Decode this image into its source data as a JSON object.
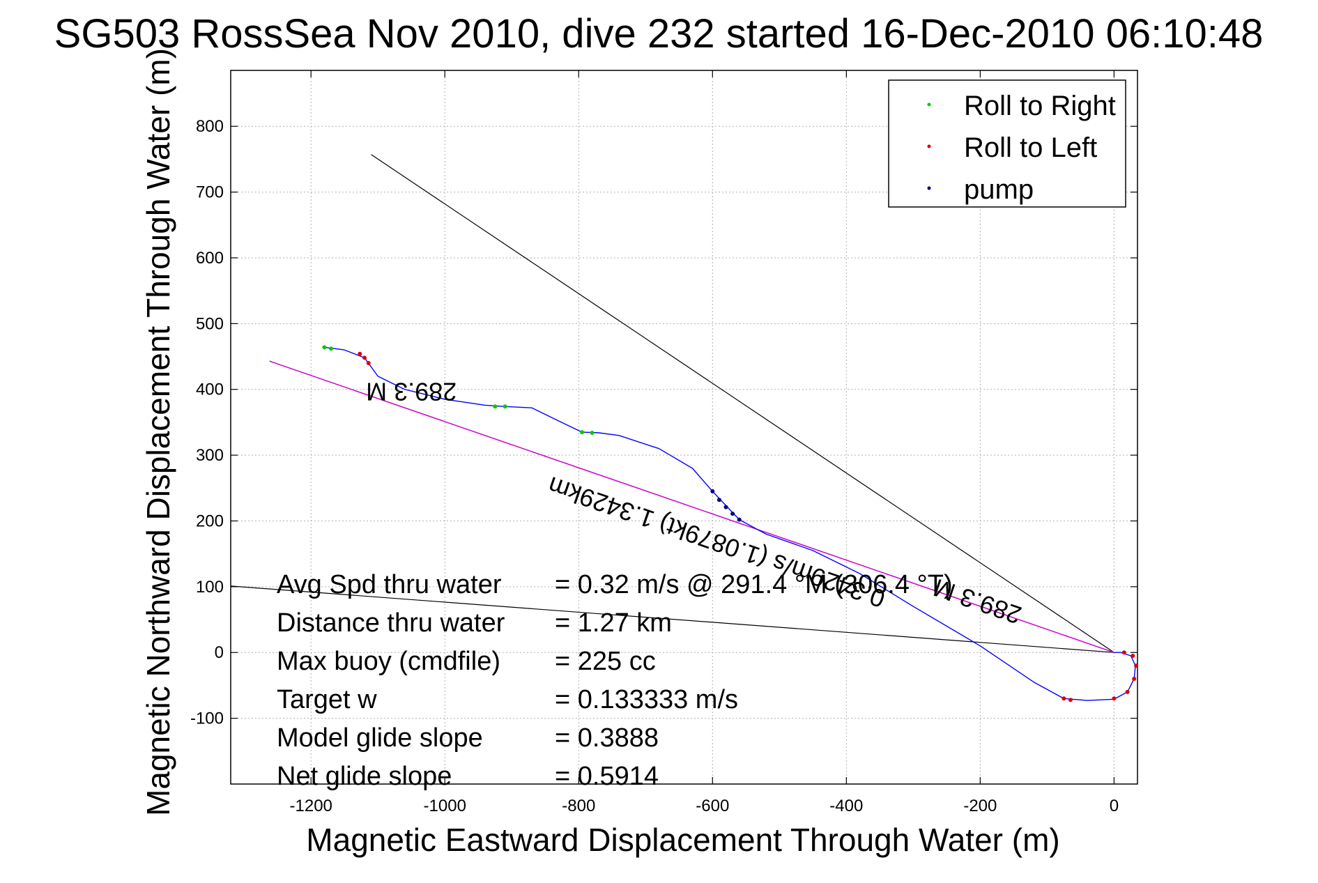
{
  "chart_data": {
    "type": "scatter",
    "title": "SG503 RossSea Nov 2010, dive 232 started 16-Dec-2010 06:10:48",
    "xlabel": "Magnetic Eastward Displacement Through Water (m)",
    "ylabel": "Magnetic Northward Displacement Through Water (m)",
    "xlim": [
      -1320,
      35
    ],
    "ylim": [
      -200,
      885
    ],
    "xticks": [
      -1200,
      -1000,
      -800,
      -600,
      -400,
      -200,
      0
    ],
    "yticks": [
      -100,
      0,
      100,
      200,
      300,
      400,
      500,
      600,
      700,
      800
    ],
    "grid": true,
    "legend_position": "top-right",
    "legend": [
      {
        "label": "Roll to Right",
        "color": "#00cc00"
      },
      {
        "label": "Roll to Left",
        "color": "#dd0000"
      },
      {
        "label": "pump",
        "color": "#000080"
      }
    ],
    "series": [
      {
        "name": "Roll to Right",
        "color": "#00cc00",
        "points": [
          [
            -1180,
            464
          ],
          [
            -1170,
            462
          ],
          [
            -925,
            374
          ],
          [
            -910,
            374
          ],
          [
            -795,
            335
          ],
          [
            -780,
            334
          ]
        ]
      },
      {
        "name": "Roll to Left",
        "color": "#dd0000",
        "points": [
          [
            -1127,
            454
          ],
          [
            -1120,
            448
          ],
          [
            -1114,
            440
          ],
          [
            -75,
            -70
          ],
          [
            -65,
            -72
          ],
          [
            0,
            -70
          ],
          [
            20,
            -60
          ],
          [
            30,
            -40
          ],
          [
            33,
            -20
          ],
          [
            28,
            -5
          ],
          [
            15,
            0
          ]
        ]
      },
      {
        "name": "pump",
        "color": "#000080",
        "points": [
          [
            -600,
            245
          ],
          [
            -590,
            232
          ],
          [
            -580,
            221
          ],
          [
            -570,
            211
          ],
          [
            -560,
            202
          ]
        ]
      }
    ],
    "track": {
      "color": "#0000ff",
      "points": [
        [
          -1180,
          464
        ],
        [
          -1150,
          460
        ],
        [
          -1120,
          448
        ],
        [
          -1100,
          420
        ],
        [
          -1060,
          400
        ],
        [
          -1000,
          385
        ],
        [
          -940,
          376
        ],
        [
          -910,
          374
        ],
        [
          -870,
          372
        ],
        [
          -830,
          352
        ],
        [
          -795,
          335
        ],
        [
          -770,
          334
        ],
        [
          -740,
          330
        ],
        [
          -680,
          310
        ],
        [
          -630,
          280
        ],
        [
          -600,
          245
        ],
        [
          -560,
          202
        ],
        [
          -520,
          180
        ],
        [
          -450,
          155
        ],
        [
          -380,
          120
        ],
        [
          -300,
          70
        ],
        [
          -200,
          10
        ],
        [
          -120,
          -45
        ],
        [
          -75,
          -70
        ],
        [
          -40,
          -73
        ],
        [
          0,
          -71
        ],
        [
          20,
          -60
        ],
        [
          30,
          -40
        ],
        [
          32,
          -20
        ],
        [
          25,
          -5
        ],
        [
          10,
          0
        ],
        [
          0,
          0
        ]
      ]
    },
    "black_lines": [
      {
        "points": [
          [
            0,
            0
          ],
          [
            -1110,
            757
          ]
        ]
      },
      {
        "points": [
          [
            0,
            0
          ],
          [
            -1320,
            101
          ]
        ]
      }
    ],
    "magenta_line": {
      "color": "#cc00cc",
      "points": [
        [
          0,
          0
        ],
        [
          -1262,
          443
        ]
      ]
    },
    "annotations": [
      {
        "text": "289.3 M",
        "at": [
          -1050,
          410
        ],
        "rotation": 180,
        "size": "large"
      },
      {
        "text": "0.3429m/s (1.0879kt) 1.3429km",
        "at": [
          -590,
          180
        ],
        "rotation": 199,
        "size": "large"
      },
      {
        "text": "289.3 M",
        "at": [
          -200,
          90
        ],
        "rotation": 199,
        "size": "large"
      }
    ],
    "stats": [
      {
        "label": "Avg Spd thru water",
        "value": "=  0.32 m/s @ 291.4  °M (306.4 °T)"
      },
      {
        "label": "Distance thru water",
        "value": "=  1.27 km"
      },
      {
        "label": "Max buoy (cmdfile)",
        "value": "= 225 cc"
      },
      {
        "label": "Target w",
        "value": "= 0.133333 m/s"
      },
      {
        "label": "Model glide slope",
        "value": "= 0.3888"
      },
      {
        "label": "Net glide slope",
        "value": "= 0.5914"
      }
    ]
  }
}
